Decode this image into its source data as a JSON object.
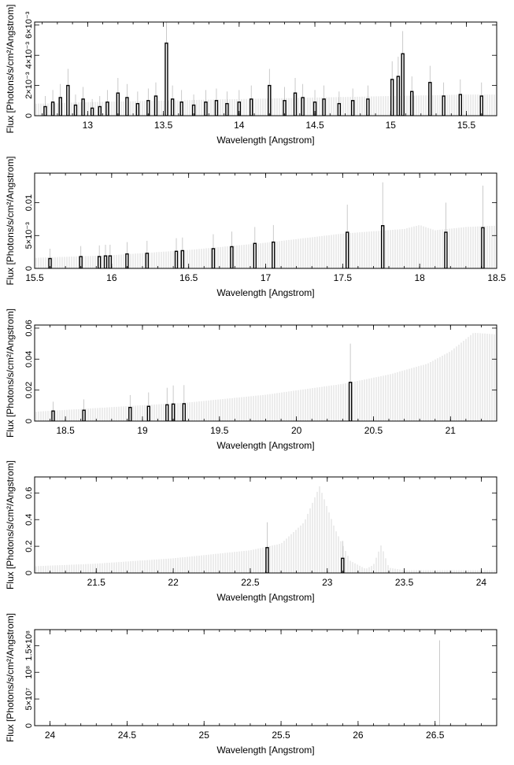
{
  "chart_data": [
    {
      "type": "bar",
      "xlabel": "Wavelength [Angstrom]",
      "ylabel": "Flux [Photons/s/cm²/Angstrom]",
      "xlim": [
        12.65,
        15.7
      ],
      "ylim": [
        0,
        0.0062
      ],
      "x_ticks": [
        13,
        13.5,
        14,
        14.5,
        15,
        15.5
      ],
      "x_tick_labels": [
        "13",
        "13.5",
        "14",
        "14.5",
        "15",
        "15.5"
      ],
      "y_ticks": [
        0,
        0.002,
        0.004,
        0.006
      ],
      "y_tick_labels": [
        "0",
        "2×10⁻³",
        "4×10⁻³",
        "6×10⁻³"
      ],
      "model": [
        [
          12.7,
          0.0008
        ],
        [
          13.0,
          0.0009
        ],
        [
          13.5,
          0.001
        ],
        [
          14.0,
          0.0011
        ],
        [
          14.5,
          0.0012
        ],
        [
          15.0,
          0.0013
        ],
        [
          15.5,
          0.0014
        ],
        [
          15.7,
          0.0014
        ]
      ],
      "observed": [
        {
          "x": 12.72,
          "y": 0.0006,
          "err": 0.0007
        },
        {
          "x": 12.77,
          "y": 0.0009,
          "err": 0.0008
        },
        {
          "x": 12.82,
          "y": 0.0012,
          "err": 0.0009
        },
        {
          "x": 12.87,
          "y": 0.002,
          "err": 0.0011
        },
        {
          "x": 12.92,
          "y": 0.0007,
          "err": 0.0007
        },
        {
          "x": 12.97,
          "y": 0.0011,
          "err": 0.0008
        },
        {
          "x": 13.03,
          "y": 0.0005,
          "err": 0.0006
        },
        {
          "x": 13.08,
          "y": 0.0006,
          "err": 0.0007
        },
        {
          "x": 13.13,
          "y": 0.0009,
          "err": 0.0008
        },
        {
          "x": 13.2,
          "y": 0.0015,
          "err": 0.001
        },
        {
          "x": 13.26,
          "y": 0.0012,
          "err": 0.0009
        },
        {
          "x": 13.33,
          "y": 0.0008,
          "err": 0.0008
        },
        {
          "x": 13.4,
          "y": 0.001,
          "err": 0.0008
        },
        {
          "x": 13.45,
          "y": 0.0013,
          "err": 0.0009
        },
        {
          "x": 13.52,
          "y": 0.0048,
          "err": 0.0015
        },
        {
          "x": 13.56,
          "y": 0.0011,
          "err": 0.0009
        },
        {
          "x": 13.62,
          "y": 0.0009,
          "err": 0.0008
        },
        {
          "x": 13.7,
          "y": 0.0007,
          "err": 0.0007
        },
        {
          "x": 13.78,
          "y": 0.0009,
          "err": 0.0008
        },
        {
          "x": 13.85,
          "y": 0.001,
          "err": 0.0008
        },
        {
          "x": 13.92,
          "y": 0.0008,
          "err": 0.0008
        },
        {
          "x": 14.0,
          "y": 0.0009,
          "err": 0.0008
        },
        {
          "x": 14.08,
          "y": 0.0011,
          "err": 0.0009
        },
        {
          "x": 14.2,
          "y": 0.002,
          "err": 0.0011
        },
        {
          "x": 14.3,
          "y": 0.001,
          "err": 0.0009
        },
        {
          "x": 14.37,
          "y": 0.0015,
          "err": 0.001
        },
        {
          "x": 14.42,
          "y": 0.0012,
          "err": 0.0009
        },
        {
          "x": 14.5,
          "y": 0.0009,
          "err": 0.0008
        },
        {
          "x": 14.56,
          "y": 0.0011,
          "err": 0.0009
        },
        {
          "x": 14.66,
          "y": 0.0008,
          "err": 0.0008
        },
        {
          "x": 14.75,
          "y": 0.001,
          "err": 0.0008
        },
        {
          "x": 14.85,
          "y": 0.0011,
          "err": 0.0009
        },
        {
          "x": 15.01,
          "y": 0.0024,
          "err": 0.0012
        },
        {
          "x": 15.05,
          "y": 0.0026,
          "err": 0.0013
        },
        {
          "x": 15.08,
          "y": 0.0041,
          "err": 0.0015
        },
        {
          "x": 15.14,
          "y": 0.0016,
          "err": 0.001
        },
        {
          "x": 15.26,
          "y": 0.0022,
          "err": 0.0011
        },
        {
          "x": 15.35,
          "y": 0.0013,
          "err": 0.0009
        },
        {
          "x": 15.46,
          "y": 0.0014,
          "err": 0.001
        },
        {
          "x": 15.6,
          "y": 0.0013,
          "err": 0.0009
        }
      ]
    },
    {
      "type": "bar",
      "xlabel": "Wavelength [Angstrom]",
      "ylabel": "Flux [Photons/s/cm²/Angstrom]",
      "xlim": [
        15.5,
        18.5
      ],
      "ylim": [
        0,
        0.0145
      ],
      "x_ticks": [
        15.5,
        16,
        16.5,
        17,
        17.5,
        18,
        18.5
      ],
      "x_tick_labels": [
        "15.5",
        "16",
        "16.5",
        "17",
        "17.5",
        "18",
        "18.5"
      ],
      "y_ticks": [
        0,
        0.005,
        0.01
      ],
      "y_tick_labels": [
        "0",
        "5×10⁻³",
        "0.01"
      ],
      "model": [
        [
          15.5,
          0.0016
        ],
        [
          16.0,
          0.002
        ],
        [
          16.5,
          0.0028
        ],
        [
          17.0,
          0.0039
        ],
        [
          17.5,
          0.0053
        ],
        [
          17.9,
          0.006
        ],
        [
          18.0,
          0.0066
        ],
        [
          18.1,
          0.0058
        ],
        [
          18.3,
          0.0063
        ],
        [
          18.5,
          0.0065
        ]
      ],
      "observed": [
        {
          "x": 15.6,
          "y": 0.0015,
          "err": 0.0015
        },
        {
          "x": 15.8,
          "y": 0.0018,
          "err": 0.0016
        },
        {
          "x": 15.92,
          "y": 0.0018,
          "err": 0.0017
        },
        {
          "x": 15.96,
          "y": 0.0019,
          "err": 0.0017
        },
        {
          "x": 15.99,
          "y": 0.0019,
          "err": 0.0017
        },
        {
          "x": 16.1,
          "y": 0.0022,
          "err": 0.0018
        },
        {
          "x": 16.23,
          "y": 0.0023,
          "err": 0.0019
        },
        {
          "x": 16.42,
          "y": 0.0026,
          "err": 0.002
        },
        {
          "x": 16.46,
          "y": 0.0027,
          "err": 0.002
        },
        {
          "x": 16.66,
          "y": 0.003,
          "err": 0.0022
        },
        {
          "x": 16.78,
          "y": 0.0033,
          "err": 0.0023
        },
        {
          "x": 16.93,
          "y": 0.0038,
          "err": 0.0025
        },
        {
          "x": 17.05,
          "y": 0.004,
          "err": 0.0026
        },
        {
          "x": 17.53,
          "y": 0.0055,
          "err": 0.0042
        },
        {
          "x": 17.76,
          "y": 0.0065,
          "err": 0.0066
        },
        {
          "x": 18.17,
          "y": 0.0055,
          "err": 0.0045
        },
        {
          "x": 18.41,
          "y": 0.0062,
          "err": 0.0064
        }
      ]
    },
    {
      "type": "bar",
      "xlabel": "Wavelength [Angstrom]",
      "ylabel": "Flux [Photons/s/cm²/Angstrom]",
      "xlim": [
        18.3,
        21.3
      ],
      "ylim": [
        0,
        0.062
      ],
      "x_ticks": [
        18.5,
        19,
        19.5,
        20,
        20.5,
        21
      ],
      "x_tick_labels": [
        "18.5",
        "19",
        "19.5",
        "20",
        "20.5",
        "21"
      ],
      "y_ticks": [
        0,
        0.02,
        0.04,
        0.06
      ],
      "y_tick_labels": [
        "0",
        "0.02",
        "0.04",
        "0.06"
      ],
      "model": [
        [
          18.3,
          0.006
        ],
        [
          18.8,
          0.009
        ],
        [
          19.3,
          0.012
        ],
        [
          19.8,
          0.017
        ],
        [
          20.3,
          0.024
        ],
        [
          20.6,
          0.03
        ],
        [
          20.85,
          0.037
        ],
        [
          21.0,
          0.045
        ],
        [
          21.15,
          0.057
        ],
        [
          21.3,
          0.056
        ]
      ],
      "observed": [
        {
          "x": 18.42,
          "y": 0.0065,
          "err": 0.006
        },
        {
          "x": 18.62,
          "y": 0.007,
          "err": 0.007
        },
        {
          "x": 18.92,
          "y": 0.0088,
          "err": 0.008
        },
        {
          "x": 19.04,
          "y": 0.0095,
          "err": 0.009
        },
        {
          "x": 19.16,
          "y": 0.0105,
          "err": 0.011
        },
        {
          "x": 19.2,
          "y": 0.011,
          "err": 0.012
        },
        {
          "x": 19.27,
          "y": 0.0112,
          "err": 0.012
        },
        {
          "x": 20.35,
          "y": 0.025,
          "err": 0.025
        }
      ]
    },
    {
      "type": "bar",
      "xlabel": "Wavelength [Angstrom]",
      "ylabel": "Flux [Photons/s/cm²/Angstrom]",
      "xlim": [
        21.1,
        24.1
      ],
      "ylim": [
        0,
        0.72
      ],
      "x_ticks": [
        21.5,
        22,
        22.5,
        23,
        23.5,
        24
      ],
      "x_tick_labels": [
        "21.5",
        "22",
        "22.5",
        "23",
        "23.5",
        "24"
      ],
      "y_ticks": [
        0,
        0.2,
        0.4,
        0.6
      ],
      "y_tick_labels": [
        "0",
        "0.2",
        "0.4",
        "0.6"
      ],
      "model": [
        [
          21.1,
          0.05
        ],
        [
          21.5,
          0.07
        ],
        [
          22.0,
          0.11
        ],
        [
          22.5,
          0.17
        ],
        [
          22.7,
          0.22
        ],
        [
          22.85,
          0.38
        ],
        [
          22.95,
          0.65
        ],
        [
          23.05,
          0.33
        ],
        [
          23.15,
          0.09
        ],
        [
          23.25,
          0.03
        ],
        [
          23.3,
          0.06
        ],
        [
          23.35,
          0.21
        ],
        [
          23.4,
          0.04
        ],
        [
          23.5,
          0.02
        ],
        [
          24.1,
          0.02
        ]
      ],
      "observed": [
        {
          "x": 22.61,
          "y": 0.19,
          "err": 0.19
        },
        {
          "x": 23.1,
          "y": 0.11,
          "err": 0.13
        }
      ]
    },
    {
      "type": "bar",
      "xlabel": "Wavelength [Angstrom]",
      "ylabel": "Flux [Photons/s/cm²/Angstrom]",
      "xlim": [
        23.9,
        26.9
      ],
      "ylim": [
        0,
        180000000
      ],
      "x_ticks": [
        24,
        24.5,
        25,
        25.5,
        26,
        26.5
      ],
      "x_tick_labels": [
        "24",
        "24.5",
        "25",
        "25.5",
        "26",
        "26.5"
      ],
      "y_ticks": [
        0,
        50000000,
        100000000,
        150000000
      ],
      "y_tick_labels": [
        "0",
        "5×10⁷",
        "10⁸",
        "1.5×10⁸"
      ],
      "model": [
        [
          23.9,
          0
        ],
        [
          26.9,
          0
        ]
      ],
      "observed": [
        {
          "x": 26.53,
          "y": 0,
          "err": 160000000
        }
      ]
    }
  ]
}
